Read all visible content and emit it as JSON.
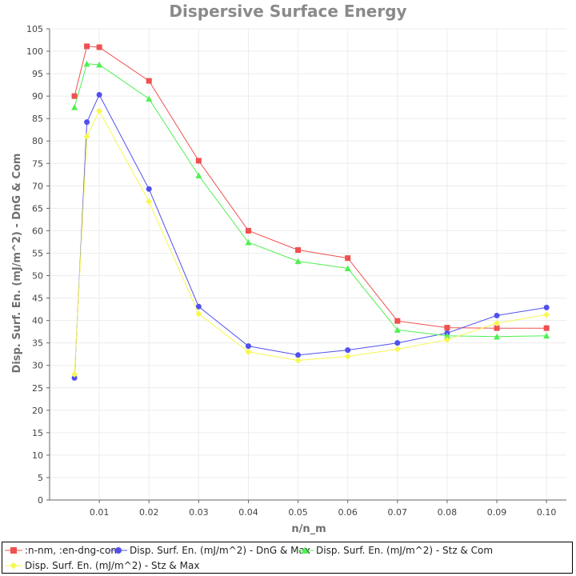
{
  "chart_data": {
    "type": "line",
    "title": "Dispersive Surface Energy",
    "xlabel": "n/n_m",
    "ylabel": "Disp. Surf. En. (mJ/m^2) - DnG & Com",
    "xlim": [
      0.0,
      0.104
    ],
    "ylim": [
      0,
      105
    ],
    "xticks": [
      0.01,
      0.02,
      0.03,
      0.04,
      0.05,
      0.06,
      0.07,
      0.08,
      0.09,
      0.1
    ],
    "xtick_labels": [
      "0.01",
      "0.02",
      "0.03",
      "0.04",
      "0.05",
      "0.06",
      "0.07",
      "0.08",
      "0.09",
      "0.10"
    ],
    "yticks": [
      0,
      5,
      10,
      15,
      20,
      25,
      30,
      35,
      40,
      45,
      50,
      55,
      60,
      65,
      70,
      75,
      80,
      85,
      90,
      95,
      100,
      105
    ],
    "ytick_labels": [
      "0",
      "5",
      "10",
      "15",
      "20",
      "25",
      "30",
      "35",
      "40",
      "45",
      "50",
      "55",
      "60",
      "65",
      "70",
      "75",
      "80",
      "85",
      "90",
      "95",
      "100",
      "105"
    ],
    "grid": true,
    "legend_position": "bottom",
    "series": [
      {
        "name": ":n-nm, :en-dng-com",
        "color": "#f05050",
        "marker": "square",
        "x": [
          0.005,
          0.0075,
          0.01,
          0.02,
          0.03,
          0.04,
          0.05,
          0.06,
          0.07,
          0.08,
          0.09,
          0.1
        ],
        "values": [
          90.0,
          101.1,
          100.9,
          93.4,
          75.6,
          60.0,
          55.7,
          53.9,
          39.9,
          38.4,
          38.3,
          38.3
        ]
      },
      {
        "name": "Disp. Surf. En. (mJ/m^2) - DnG & Max",
        "color": "#5050f0",
        "marker": "circle",
        "x": [
          0.005,
          0.0075,
          0.01,
          0.02,
          0.03,
          0.04,
          0.05,
          0.06,
          0.07,
          0.08,
          0.09,
          0.1
        ],
        "values": [
          27.2,
          84.2,
          90.3,
          69.3,
          43.1,
          34.3,
          32.3,
          33.4,
          35.0,
          37.2,
          41.1,
          42.9
        ]
      },
      {
        "name": "Disp. Surf. En. (mJ/m^2) - Stz & Com",
        "color": "#50f050",
        "marker": "triangle",
        "x": [
          0.005,
          0.0075,
          0.01,
          0.02,
          0.03,
          0.04,
          0.05,
          0.06,
          0.07,
          0.08,
          0.09,
          0.1
        ],
        "values": [
          87.5,
          97.2,
          97.0,
          89.4,
          72.3,
          57.4,
          53.2,
          51.6,
          37.9,
          36.6,
          36.4,
          36.6
        ]
      },
      {
        "name": "Disp. Surf. En. (mJ/m^2) - Stz & Max",
        "color": "#f7f750",
        "marker": "diamond",
        "x": [
          0.005,
          0.0075,
          0.01,
          0.02,
          0.03,
          0.04,
          0.05,
          0.06,
          0.07,
          0.08,
          0.09,
          0.1
        ],
        "values": [
          28.0,
          81.0,
          86.7,
          66.5,
          41.5,
          33.0,
          31.1,
          32.0,
          33.6,
          35.7,
          39.4,
          41.3
        ]
      }
    ]
  }
}
